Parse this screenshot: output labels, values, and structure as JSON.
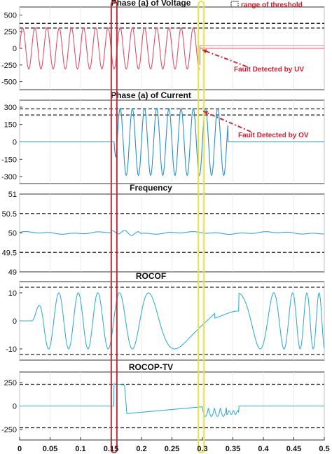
{
  "chart_data": [
    {
      "type": "line",
      "title": "Phase (a) of Voltage",
      "ylim": [
        -620,
        620
      ],
      "yticks": [
        500,
        250,
        0,
        -250,
        -500
      ],
      "ytick_labels": [
        "500",
        "250",
        "0",
        "-250",
        "-500"
      ],
      "thresholds": [
        375,
        305
      ],
      "series": [
        {
          "color": "#e0506a",
          "waveform": "sine",
          "amplitude": 310,
          "frequency_hz": 50,
          "x_start": 0,
          "x_end": 0.296,
          "after": {
            "x_start": 0.296,
            "x_end": 0.5,
            "value": 0,
            "offset_line": 10
          }
        }
      ]
    },
    {
      "type": "line",
      "title": "Phase (a) of Current",
      "ylim": [
        -360,
        360
      ],
      "yticks": [
        300,
        150,
        0,
        -150,
        -300
      ],
      "ytick_labels": [
        "300",
        "150",
        "0",
        "-150",
        "-300"
      ],
      "thresholds": [
        285,
        232
      ],
      "series": [
        {
          "color": "#2a8fcf",
          "waveform": "sine",
          "amplitude": 290,
          "frequency_hz": 50,
          "x_start": 0.155,
          "x_end": 0.342,
          "before_value": 0,
          "after_value": 0
        }
      ]
    },
    {
      "type": "line",
      "title": "Frequency",
      "ylim": [
        49,
        51
      ],
      "yticks": [
        51,
        50.5,
        50,
        49.5,
        49
      ],
      "ytick_labels": [
        "51",
        "50.5",
        "50",
        "49.5",
        "49"
      ],
      "thresholds": [
        50.5,
        49.5
      ],
      "series": [
        {
          "color": "#3aa4d8",
          "waveform": "noise",
          "mean": 50,
          "amplitude": 0.035,
          "x_start": 0,
          "x_end": 0.5
        }
      ]
    },
    {
      "type": "line",
      "title": "ROCOF",
      "ylim": [
        -14,
        14
      ],
      "yticks": [
        10,
        0,
        -10
      ],
      "ytick_labels": [
        "10",
        "0",
        "-10"
      ],
      "thresholds": [
        12,
        -12
      ],
      "series": [
        {
          "color": "#3aaed0",
          "waveform": "oscillation",
          "amplitude": 10,
          "x_start": 0,
          "x_end": 0.5
        }
      ]
    },
    {
      "type": "line",
      "title": "ROCOP-TV",
      "ylim": [
        -360,
        360
      ],
      "yticks": [
        250,
        0,
        -250
      ],
      "ytick_labels": [
        "250",
        "0",
        "-250"
      ],
      "thresholds": [
        230,
        -230
      ],
      "series": [
        {
          "color": "#3aaed0",
          "waveform": "transient",
          "x_start": 0,
          "x_end": 0.5
        }
      ]
    }
  ],
  "x_axis": {
    "xlim": [
      0,
      0.5
    ],
    "ticks": [
      0,
      0.05,
      0.1,
      0.15,
      0.2,
      0.25,
      0.3,
      0.35,
      0.4,
      0.45,
      0.5
    ],
    "tick_labels": [
      "0",
      "0.05",
      "0.1",
      "0.15",
      "0.2",
      "0.25",
      "0.3",
      "0.35",
      "0.4",
      "0.45",
      "0.5"
    ]
  },
  "legend": {
    "label": "range of threshold",
    "position": "top-right"
  },
  "annotations": [
    {
      "text": "Fault Detected by UV",
      "panel": 0,
      "target_x": 0.296,
      "target_y": 0
    },
    {
      "text": "Fault Detected by OV",
      "panel": 1,
      "target_x": 0.298,
      "target_y": 265
    }
  ],
  "highlights": [
    {
      "name": "fault-start",
      "x": 0.155,
      "color": "#c0303a"
    },
    {
      "name": "fault-detected",
      "x": 0.298,
      "color": "#e8e23c"
    }
  ],
  "colors": {
    "threshold": "#222222",
    "grid": "#bbbbbb",
    "axis": "#333333"
  }
}
